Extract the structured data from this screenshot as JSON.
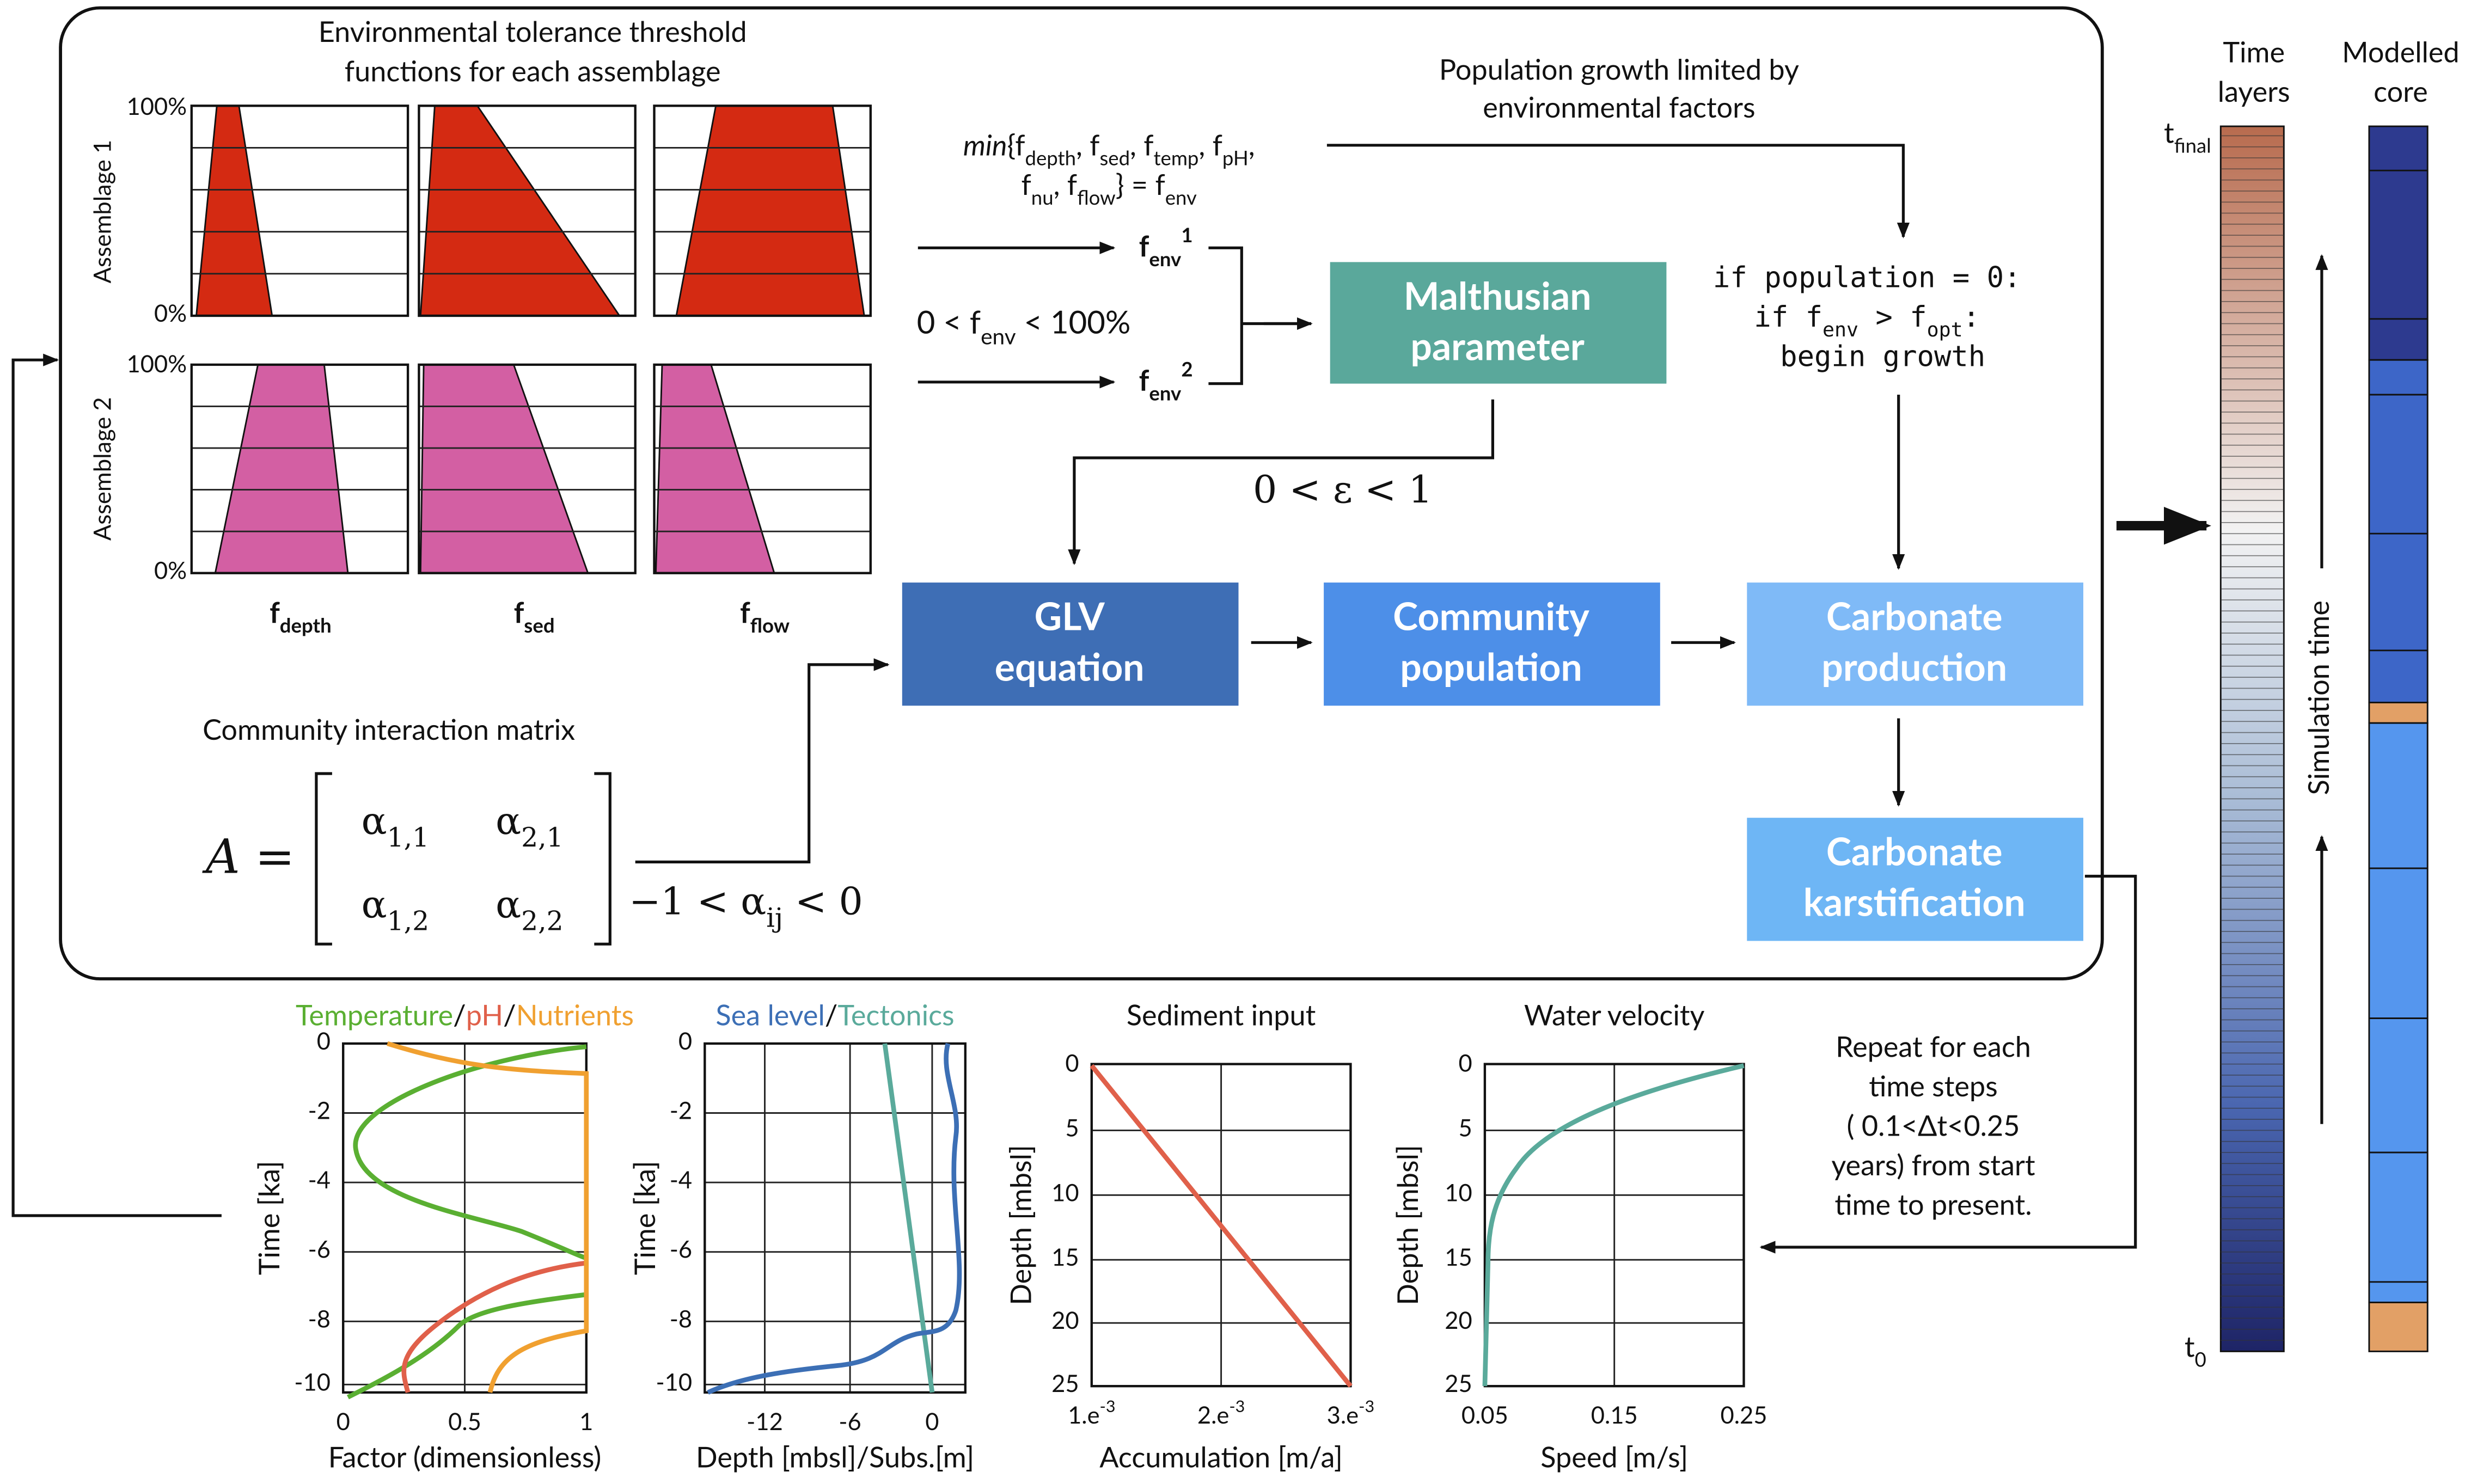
{
  "tolerance": {
    "title": [
      "Environmental tolerance threshold",
      "functions for each assemblage"
    ],
    "assemblages": [
      "Assemblage 1",
      "Assemblage 2"
    ],
    "y_labels": [
      "100%",
      "0%"
    ],
    "factors": [
      [
        {
          "text": "f"
        },
        {
          "text": "depth",
          "sub": true
        }
      ],
      [
        {
          "text": "f"
        },
        {
          "text": "sed",
          "sub": true
        }
      ],
      [
        {
          "text": "f"
        },
        {
          "text": "flow",
          "sub": true
        }
      ]
    ]
  },
  "formula": {
    "line1": [
      {
        "text": "min",
        "italic": true
      },
      {
        "text": "{f"
      },
      {
        "text": "depth",
        "sub": true
      },
      {
        "text": ", f"
      },
      {
        "text": "sed",
        "sub": true
      },
      {
        "text": ", f"
      },
      {
        "text": "temp",
        "sub": true
      },
      {
        "text": ", f"
      },
      {
        "text": "pH",
        "sub": true
      },
      {
        "text": ","
      }
    ],
    "line2": [
      {
        "text": "f"
      },
      {
        "text": "nu",
        "sub": true
      },
      {
        "text": ", f"
      },
      {
        "text": "flow",
        "sub": true
      },
      {
        "text": "} = f"
      },
      {
        "text": "env",
        "sub": true
      }
    ]
  },
  "fenv1": [
    {
      "text": "f"
    },
    {
      "text": "env",
      "sub": true
    },
    {
      "text": "1",
      "sup": true
    }
  ],
  "fenv2": [
    {
      "text": "f"
    },
    {
      "text": "env",
      "sub": true
    },
    {
      "text": "2",
      "sup": true
    }
  ],
  "range": [
    {
      "text": "0 < f"
    },
    {
      "text": "env",
      "sub": true
    },
    {
      "text": " < 100%"
    }
  ],
  "growth_note": [
    "Population growth limited by",
    "environmental factors"
  ],
  "code": [
    [
      {
        "text": "if population = 0:"
      }
    ],
    [
      {
        "text": "if f"
      },
      {
        "text": "env",
        "sub": true
      },
      {
        "text": " > f"
      },
      {
        "text": "opt",
        "sub": true
      },
      {
        "text": ":"
      }
    ],
    [
      {
        "text": "begin growth"
      }
    ]
  ],
  "epsilon": "0 < ε < 1",
  "boxes": {
    "malthusian": [
      "Malthusian",
      "parameter"
    ],
    "glv": [
      "GLV",
      "equation"
    ],
    "community": [
      "Community",
      "population"
    ],
    "production": [
      "Carbonate",
      "production"
    ],
    "karst": [
      "Carbonate",
      "karstification"
    ]
  },
  "matrix": {
    "title": "Community interaction matrix",
    "lhs": "A =",
    "entries": [
      [
        {
          "text": "α"
        },
        {
          "text": "1,1",
          "sub": true
        }
      ],
      [
        {
          "text": "α"
        },
        {
          "text": "2,1",
          "sub": true
        }
      ],
      [
        {
          "text": "α"
        },
        {
          "text": "1,2",
          "sub": true
        }
      ],
      [
        {
          "text": "α"
        },
        {
          "text": "2,2",
          "sub": true
        }
      ]
    ],
    "constraint": [
      {
        "text": "−1 < α"
      },
      {
        "text": "ij",
        "sub": true
      },
      {
        "text": " < 0"
      }
    ]
  },
  "repeat": [
    "Repeat for each",
    "time steps",
    "( 0.1<Δt<0.25",
    "years) from start",
    "time to present."
  ],
  "time_layers": {
    "title": [
      "Time",
      "layers"
    ],
    "top": [
      {
        "text": "t"
      },
      {
        "text": "final",
        "sub": true
      }
    ],
    "bottom": [
      {
        "text": "t"
      },
      {
        "text": "0",
        "sub": true
      }
    ]
  },
  "core": {
    "title": [
      "Modelled",
      "core"
    ]
  },
  "simulation_time": "Simulation time",
  "plots": [
    {
      "title": [
        {
          "text": "Temperature",
          "color": "#5aaf32"
        },
        {
          "text": "/"
        },
        {
          "text": "pH",
          "color": "#e0604a"
        },
        {
          "text": "/"
        },
        {
          "text": "Nutrients",
          "color": "#f0a030"
        }
      ],
      "xlabel": "Factor (dimensionless)",
      "ylabel": "Time [ka]",
      "xticks": [
        "0",
        "0.5",
        "1"
      ],
      "yticks": [
        "0",
        "-2",
        "-4",
        "-6",
        "-8",
        "-10"
      ]
    },
    {
      "title": [
        {
          "text": "Sea level",
          "color": "#3c6fb5"
        },
        {
          "text": "/"
        },
        {
          "text": "Tectonics",
          "color": "#5aaa9b"
        }
      ],
      "xlabel": "Depth [mbsl]/Subs.[m]",
      "ylabel": "Time [ka]",
      "xticks": [
        "-12",
        "-6",
        "0"
      ],
      "yticks": [
        "0",
        "-2",
        "-4",
        "-6",
        "-8",
        "-10"
      ]
    },
    {
      "title": [
        {
          "text": "Sediment input"
        }
      ],
      "xlabel": "Accumulation [m/a]",
      "ylabel": "Depth [mbsl]",
      "xticks": [
        [
          {
            "text": "1.e"
          },
          {
            "text": "-3",
            "sup": true
          }
        ],
        [
          {
            "text": "2.e"
          },
          {
            "text": "-3",
            "sup": true
          }
        ],
        [
          {
            "text": "3.e"
          },
          {
            "text": "-3",
            "sup": true
          }
        ]
      ],
      "yticks": [
        "0",
        "5",
        "10",
        "15",
        "20",
        "25"
      ]
    },
    {
      "title": [
        {
          "text": "Water velocity"
        }
      ],
      "xlabel": "Speed [m/s]",
      "ylabel": "Depth [mbsl]",
      "xticks": [
        "0.05",
        "0.15",
        "0.25"
      ],
      "yticks": [
        "0",
        "5",
        "10",
        "15",
        "20",
        "25"
      ]
    }
  ]
}
